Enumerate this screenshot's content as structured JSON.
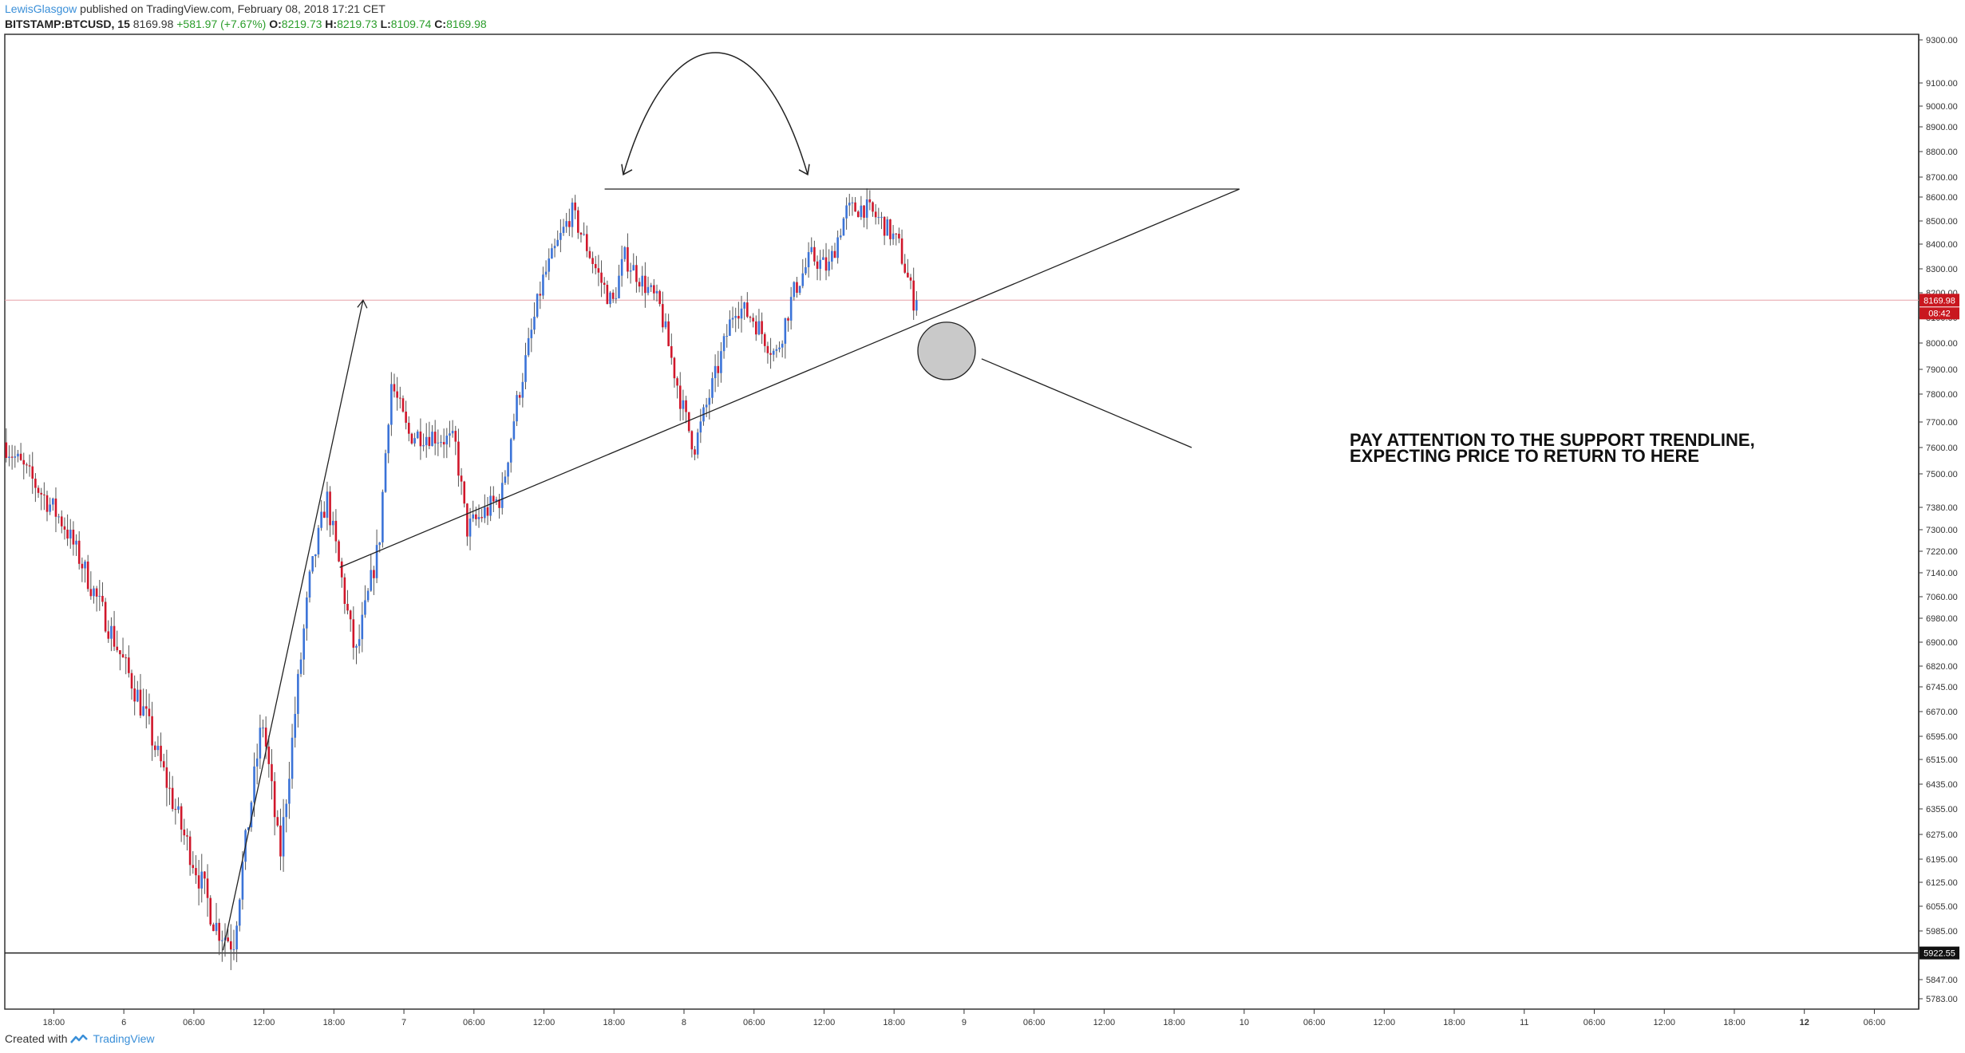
{
  "header": {
    "author": "LewisGlasgow",
    "published": "published on TradingView.com, February 08, 2018 17:21 CET",
    "symbol": "BITSTAMP:BTCUSD, 15",
    "last": "8169.98",
    "change": "+581.97 (+7.67%)",
    "o_label": "O:",
    "o": "8219.73",
    "h_label": "H:",
    "h": "8219.73",
    "l_label": "L:",
    "l": "8109.74",
    "c_label": "C:",
    "c": "8169.98"
  },
  "annotation": "PAY ATTENTION TO THE SUPPORT TRENDLINE, EXPECTING PRICE TO RETURN TO HERE",
  "footer": {
    "created": "Created with",
    "brand": "TradingView"
  },
  "colors": {
    "up": "#3b73d8",
    "down": "#d0172b",
    "wick": "#555555",
    "price_line": "#e7a0a8",
    "price_tag": "#c9171f"
  },
  "chart_data": {
    "type": "candlestick",
    "series_name": "BITSTAMP:BTCUSD",
    "interval": "15",
    "current_price": 8169.98,
    "current_price_label": "8169.98",
    "countdown_label": "08:42",
    "level_line": 5922.55,
    "level_line_label": "5922.55",
    "ylim": [
      5740,
      9310
    ],
    "y_ticks": [
      "9300.00",
      "9100.00",
      "9000.00",
      "8900.00",
      "8800.00",
      "8700.00",
      "8600.00",
      "8500.00",
      "8400.00",
      "8300.00",
      "8200.00",
      "8100.00",
      "8000.00",
      "7900.00",
      "7800.00",
      "7700.00",
      "7600.00",
      "7500.00",
      "7380.00",
      "7300.00",
      "7220.00",
      "7140.00",
      "7060.00",
      "6980.00",
      "6900.00",
      "6820.00",
      "6745.00",
      "6670.00",
      "6595.00",
      "6515.00",
      "6435.00",
      "6355.00",
      "6275.00",
      "6195.00",
      "6125.00",
      "6055.00",
      "5985.00",
      "5847.00",
      "5783.00"
    ],
    "y_tick_values": [
      9300,
      9100,
      9000,
      8900,
      8800,
      8700,
      8600,
      8500,
      8400,
      8300,
      8200,
      8100,
      8000,
      7900,
      7800,
      7700,
      7600,
      7500,
      7380,
      7300,
      7220,
      7140,
      7060,
      6980,
      6900,
      6820,
      6745,
      6670,
      6595,
      6515,
      6435,
      6355,
      6275,
      6195,
      6125,
      6055,
      5985,
      5847,
      5783
    ],
    "x_ticks": [
      "18:00",
      "6",
      "06:00",
      "12:00",
      "18:00",
      "7",
      "06:00",
      "12:00",
      "18:00",
      "8",
      "06:00",
      "12:00",
      "18:00",
      "9",
      "06:00",
      "12:00",
      "18:00",
      "10",
      "06:00",
      "12:00",
      "18:00",
      "11",
      "06:00",
      "12:00",
      "18:00",
      "12",
      "06:00"
    ],
    "x_tick_hours": [
      18,
      24,
      30,
      36,
      42,
      48,
      54,
      60,
      66,
      72,
      78,
      84,
      90,
      96,
      102,
      108,
      114,
      120,
      126,
      132,
      138,
      144,
      150,
      156,
      162,
      168,
      174
    ],
    "x_start_hour": 13.8,
    "x_end_hour": 177.8,
    "bold_x_ticks": [
      "12"
    ],
    "key_points": [
      {
        "hour": 13.8,
        "price": 7620
      },
      {
        "hour": 19,
        "price": 7320
      },
      {
        "hour": 26,
        "price": 6650
      },
      {
        "hour": 29,
        "price": 6300
      },
      {
        "hour": 32,
        "price": 6000
      },
      {
        "hour": 33.5,
        "price": 5950
      },
      {
        "hour": 36,
        "price": 6650
      },
      {
        "hour": 37.5,
        "price": 6200
      },
      {
        "hour": 40,
        "price": 7100
      },
      {
        "hour": 41.5,
        "price": 7420
      },
      {
        "hour": 43.5,
        "price": 6950
      },
      {
        "hour": 44,
        "price": 6850
      },
      {
        "hour": 46,
        "price": 7250
      },
      {
        "hour": 47,
        "price": 7850
      },
      {
        "hour": 48.5,
        "price": 7650
      },
      {
        "hour": 50.5,
        "price": 7650
      },
      {
        "hour": 52.5,
        "price": 7620
      },
      {
        "hour": 53.5,
        "price": 7300
      },
      {
        "hour": 56.5,
        "price": 7420
      },
      {
        "hour": 57.5,
        "price": 7700
      },
      {
        "hour": 60,
        "price": 8250
      },
      {
        "hour": 62.5,
        "price": 8540
      },
      {
        "hour": 65,
        "price": 8250
      },
      {
        "hour": 66,
        "price": 8150
      },
      {
        "hour": 67,
        "price": 8350
      },
      {
        "hour": 70,
        "price": 8150
      },
      {
        "hour": 72,
        "price": 7750
      },
      {
        "hour": 73,
        "price": 7600
      },
      {
        "hour": 75,
        "price": 7900
      },
      {
        "hour": 76.5,
        "price": 8150
      },
      {
        "hour": 78,
        "price": 8100
      },
      {
        "hour": 80,
        "price": 7950
      },
      {
        "hour": 81.5,
        "price": 8200
      },
      {
        "hour": 83,
        "price": 8350
      },
      {
        "hour": 84.5,
        "price": 8300
      },
      {
        "hour": 86,
        "price": 8540
      },
      {
        "hour": 87.5,
        "price": 8560
      },
      {
        "hour": 89,
        "price": 8500
      },
      {
        "hour": 90.5,
        "price": 8400
      },
      {
        "hour": 91.8,
        "price": 8170
      }
    ],
    "drawings": {
      "resistance_line": {
        "from": {
          "hour": 65.2,
          "price": 8640
        },
        "to": {
          "hour": 119.6,
          "price": 8640
        }
      },
      "support_trendline": {
        "from": {
          "hour": 42.5,
          "price": 7160
        },
        "to": {
          "hour": 119.6,
          "price": 8640
        }
      },
      "impulse_arrow": {
        "from": {
          "hour": 32.5,
          "price": 5930
        },
        "to": {
          "hour": 44.5,
          "price": 8170
        }
      },
      "pointer_line": {
        "from": {
          "hour": 97.5,
          "price": 7940
        },
        "to": {
          "hour": 115.5,
          "price": 7600
        }
      },
      "target_circle": {
        "hour": 94.5,
        "price": 7970
      }
    }
  }
}
